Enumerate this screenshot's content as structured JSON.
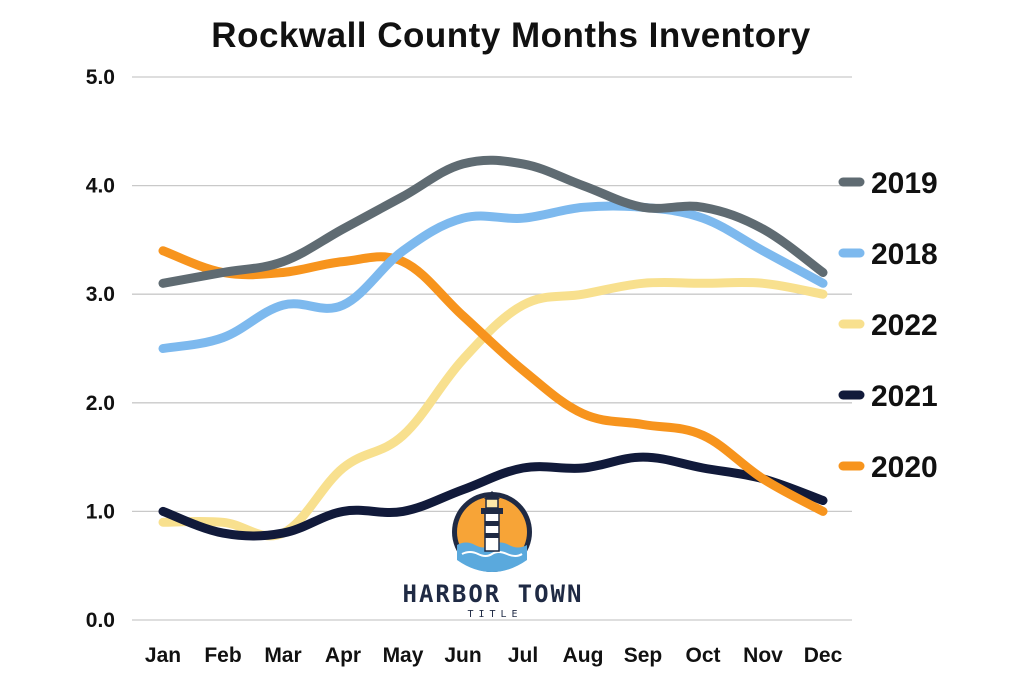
{
  "chart_data": {
    "type": "line",
    "title": "Rockwall County Months Inventory",
    "xlabel": "",
    "ylabel": "",
    "categories": [
      "Jan",
      "Feb",
      "Mar",
      "Apr",
      "May",
      "Jun",
      "Jul",
      "Aug",
      "Sep",
      "Oct",
      "Nov",
      "Dec"
    ],
    "ylim": [
      0,
      5
    ],
    "yticks": [
      "0.0",
      "1.0",
      "2.0",
      "3.0",
      "4.0",
      "5.0"
    ],
    "grid": true,
    "legend_position": "right",
    "series": [
      {
        "name": "2022",
        "color": "#f8e08e",
        "values": [
          0.9,
          0.9,
          0.8,
          1.4,
          1.7,
          2.4,
          2.9,
          3.0,
          3.1,
          3.1,
          3.1,
          3.0
        ]
      },
      {
        "name": "2021",
        "color": "#111a3a",
        "values": [
          1.0,
          0.8,
          0.8,
          1.0,
          1.0,
          1.2,
          1.4,
          1.4,
          1.5,
          1.4,
          1.3,
          1.1
        ]
      },
      {
        "name": "2020",
        "color": "#f7941d",
        "values": [
          3.4,
          3.2,
          3.2,
          3.3,
          3.3,
          2.8,
          2.3,
          1.9,
          1.8,
          1.7,
          1.3,
          1.0
        ]
      },
      {
        "name": "2018",
        "color": "#7db9ee",
        "values": [
          2.5,
          2.6,
          2.9,
          2.9,
          3.4,
          3.7,
          3.7,
          3.8,
          3.8,
          3.7,
          3.4,
          3.1
        ]
      },
      {
        "name": "2019",
        "color": "#5f6b72",
        "values": [
          3.1,
          3.2,
          3.3,
          3.6,
          3.9,
          4.2,
          4.2,
          4.0,
          3.8,
          3.8,
          3.6,
          3.2
        ]
      }
    ],
    "legend": [
      "2019",
      "2018",
      "2022",
      "2021",
      "2020"
    ]
  },
  "logo": {
    "name": "HARBOR TOWN",
    "sub": "TITLE"
  },
  "colors": {
    "logo_navy": "#1f2a44",
    "logo_orange": "#f7a437",
    "logo_water": "#5aa9dd"
  }
}
